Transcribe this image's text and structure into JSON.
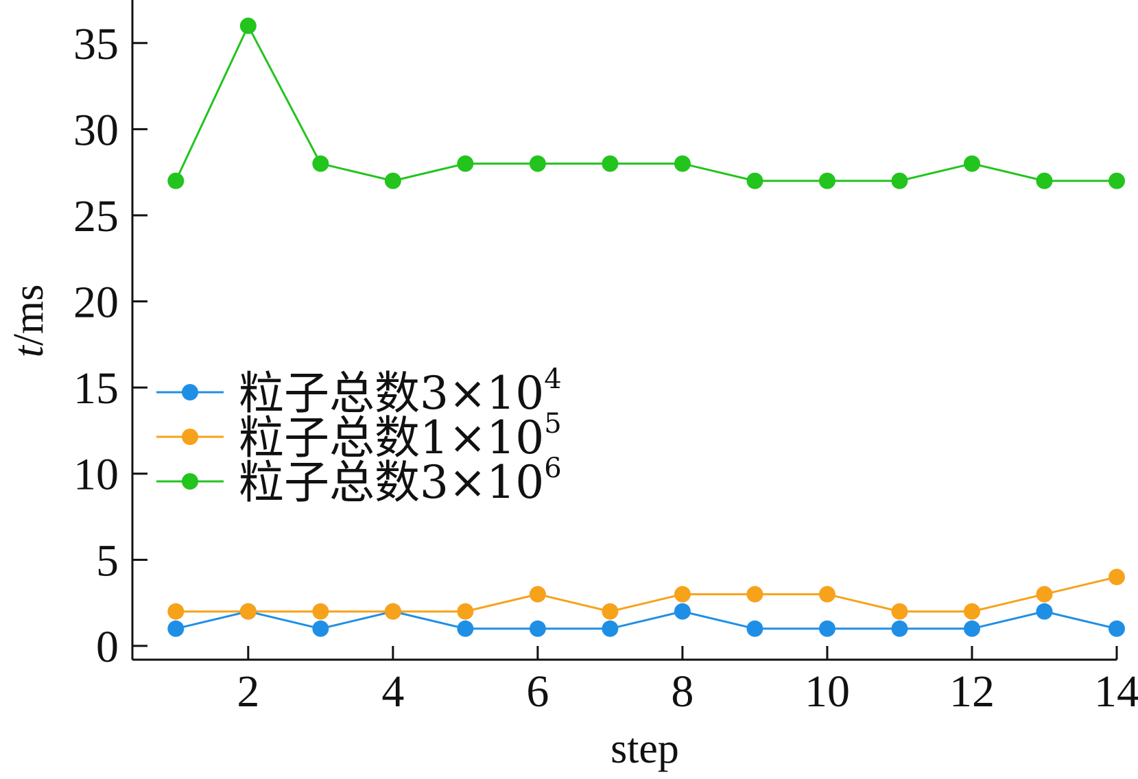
{
  "chart_data": {
    "type": "line",
    "x": [
      1,
      2,
      3,
      4,
      5,
      6,
      7,
      8,
      9,
      10,
      11,
      12,
      13,
      14
    ],
    "series": [
      {
        "label_prefix": "粒子总数3×10",
        "label_exp": "4",
        "color": "#1f8fe6",
        "values": [
          1,
          2,
          1,
          2,
          1,
          1,
          1,
          2,
          1,
          1,
          1,
          1,
          2,
          1
        ]
      },
      {
        "label_prefix": "粒子总数1×10",
        "label_exp": "5",
        "color": "#f7a21b",
        "values": [
          2,
          2,
          2,
          2,
          2,
          3,
          2,
          3,
          3,
          3,
          2,
          2,
          3,
          4
        ]
      },
      {
        "label_prefix": "粒子总数3×10",
        "label_exp": "6",
        "color": "#22c41d",
        "values": [
          27,
          36,
          28,
          27,
          28,
          28,
          28,
          28,
          27,
          27,
          27,
          28,
          27,
          27
        ]
      }
    ],
    "xlabel": "step",
    "ylabel_italic": "t",
    "ylabel_unit": "/ms",
    "xticks": [
      2,
      4,
      6,
      8,
      10,
      12,
      14
    ],
    "yticks": [
      0,
      5,
      10,
      15,
      20,
      25,
      30,
      35
    ],
    "xlim": [
      0.4,
      14
    ],
    "ylim": [
      -0.8,
      37.5
    ],
    "legend_position": "center-left",
    "grid": false
  }
}
